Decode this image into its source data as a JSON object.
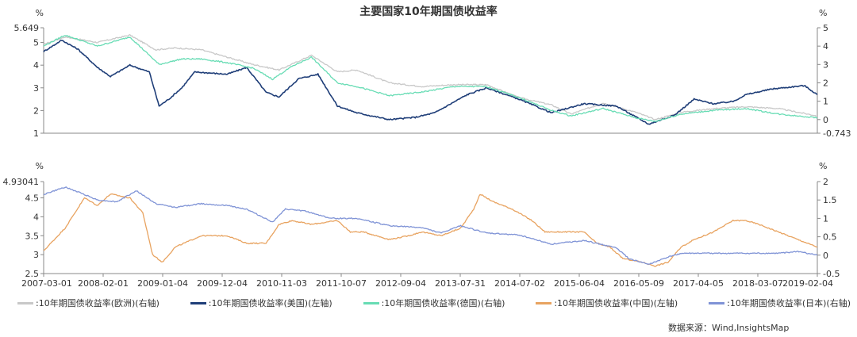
{
  "title": "主要国家10年期国债收益率",
  "source": "数据来源：Wind,InsightsMap",
  "chart_data": [
    {
      "type": "line",
      "id": "top",
      "left_axis": {
        "unit": "%",
        "min": 1,
        "max": 5.649,
        "ticks": [
          1,
          2,
          3,
          4,
          5,
          5.649
        ],
        "tick_labels": [
          "1",
          "2",
          "3",
          "4",
          "5",
          "5.649"
        ]
      },
      "right_axis": {
        "unit": "%",
        "min": -0.743,
        "max": 5,
        "ticks": [
          0,
          1,
          2,
          3,
          4,
          5,
          -0.743
        ],
        "tick_labels": [
          "0",
          "1",
          "2",
          "3",
          "4",
          "5",
          "-0.743"
        ]
      },
      "series": [
        {
          "name": ":10年期国债收益率(欧洲)(右轴)",
          "axis": "right",
          "color": "#c8c8c8",
          "x": [
            2007.17,
            2007.5,
            2008.0,
            2008.5,
            2008.9,
            2009.2,
            2009.6,
            2010.0,
            2010.4,
            2010.8,
            2011.3,
            2011.7,
            2012.0,
            2012.5,
            2013.0,
            2013.5,
            2014.0,
            2014.5,
            2015.0,
            2015.3,
            2015.8,
            2016.3,
            2016.6,
            2017.0,
            2017.5,
            2018.0,
            2018.5,
            2019.1
          ],
          "values": [
            4.1,
            4.5,
            4.2,
            4.6,
            3.8,
            3.9,
            3.8,
            3.4,
            3.0,
            2.7,
            3.5,
            2.6,
            2.7,
            2.0,
            1.8,
            1.9,
            1.9,
            1.2,
            0.8,
            0.3,
            0.9,
            0.4,
            0.0,
            0.4,
            0.6,
            0.7,
            0.6,
            0.2
          ]
        },
        {
          "name": ":10年期国债收益率(美国)(左轴)",
          "axis": "left",
          "color": "#1f3e78",
          "x": [
            2007.17,
            2007.45,
            2007.7,
            2008.0,
            2008.2,
            2008.5,
            2008.8,
            2008.95,
            2009.1,
            2009.3,
            2009.5,
            2010.0,
            2010.3,
            2010.6,
            2010.8,
            2011.1,
            2011.4,
            2011.7,
            2012.0,
            2012.5,
            2012.9,
            2013.2,
            2013.7,
            2014.0,
            2014.5,
            2015.0,
            2015.5,
            2016.0,
            2016.5,
            2016.9,
            2017.2,
            2017.5,
            2017.8,
            2018.0,
            2018.4,
            2018.9,
            2019.1
          ],
          "values": [
            4.6,
            5.1,
            4.7,
            3.9,
            3.5,
            4.0,
            3.7,
            2.2,
            2.5,
            3.0,
            3.7,
            3.6,
            3.9,
            2.8,
            2.6,
            3.4,
            3.6,
            2.2,
            1.9,
            1.6,
            1.7,
            1.9,
            2.7,
            3.0,
            2.5,
            1.9,
            2.3,
            2.2,
            1.4,
            1.8,
            2.5,
            2.3,
            2.4,
            2.7,
            2.95,
            3.1,
            2.7
          ]
        },
        {
          "name": ":10年期国债收益率(德国)(右轴)",
          "axis": "right",
          "color": "#67dcb4",
          "x": [
            2007.17,
            2007.5,
            2008.0,
            2008.5,
            2008.95,
            2009.3,
            2009.6,
            2010.0,
            2010.4,
            2010.7,
            2011.0,
            2011.3,
            2011.7,
            2012.0,
            2012.5,
            2013.0,
            2013.5,
            2014.0,
            2014.5,
            2015.0,
            2015.3,
            2015.8,
            2016.3,
            2016.6,
            2017.0,
            2017.5,
            2018.0,
            2018.5,
            2019.1
          ],
          "values": [
            4.0,
            4.6,
            4.0,
            4.5,
            3.0,
            3.3,
            3.3,
            3.1,
            2.8,
            2.2,
            2.9,
            3.4,
            2.0,
            1.8,
            1.3,
            1.5,
            1.8,
            1.8,
            1.2,
            0.5,
            0.2,
            0.6,
            0.1,
            -0.1,
            0.3,
            0.5,
            0.6,
            0.3,
            0.1
          ]
        }
      ]
    },
    {
      "type": "line",
      "id": "bottom",
      "left_axis": {
        "unit": "%",
        "min": 2.5,
        "max": 4.93041,
        "ticks": [
          2.5,
          3,
          3.5,
          4,
          4.5,
          4.93041
        ],
        "tick_labels": [
          "2.5",
          "3",
          "3.5",
          "4",
          "4.5",
          "4.93041"
        ]
      },
      "right_axis": {
        "unit": "%",
        "min": -0.5,
        "max": 2,
        "ticks": [
          -0.5,
          0,
          0.5,
          1,
          1.5,
          2
        ],
        "tick_labels": [
          "-0.5",
          "0",
          "0.5",
          "1",
          "1.5",
          "2"
        ]
      },
      "x_tick_labels": [
        "2007-03-01",
        "2008-02-01",
        "2009-01-04",
        "2009-12-04",
        "2010-11-03",
        "2011-10-07",
        "2012-09-04",
        "2013-07-31",
        "2014-07-02",
        "2015-06-04",
        "2016-05-09",
        "2017-04-05",
        "2018-03-07",
        "2019-02-04"
      ],
      "series": [
        {
          "name": ":10年期国债收益率(中国)(左轴)",
          "axis": "left",
          "color": "#e8a360",
          "x": [
            2007.17,
            2007.5,
            2007.8,
            2008.0,
            2008.2,
            2008.5,
            2008.7,
            2008.85,
            2009.0,
            2009.2,
            2009.6,
            2010.0,
            2010.3,
            2010.6,
            2010.8,
            2011.0,
            2011.3,
            2011.7,
            2011.9,
            2012.1,
            2012.5,
            2012.8,
            2013.0,
            2013.3,
            2013.6,
            2013.8,
            2013.9,
            2014.1,
            2014.4,
            2014.7,
            2014.9,
            2015.2,
            2015.5,
            2015.7,
            2015.9,
            2016.1,
            2016.4,
            2016.6,
            2016.8,
            2017.0,
            2017.2,
            2017.5,
            2017.8,
            2018.0,
            2018.2,
            2018.5,
            2018.8,
            2019.1
          ],
          "values": [
            3.1,
            3.7,
            4.5,
            4.3,
            4.6,
            4.5,
            4.1,
            3.0,
            2.8,
            3.2,
            3.5,
            3.5,
            3.3,
            3.3,
            3.8,
            3.9,
            3.8,
            3.9,
            3.6,
            3.6,
            3.4,
            3.5,
            3.6,
            3.5,
            3.7,
            4.2,
            4.6,
            4.4,
            4.2,
            3.9,
            3.6,
            3.6,
            3.6,
            3.3,
            3.2,
            2.9,
            2.8,
            2.7,
            2.8,
            3.2,
            3.4,
            3.6,
            3.9,
            3.9,
            3.8,
            3.6,
            3.4,
            3.2
          ]
        },
        {
          "name": ":10年期国债收益率(日本)(右轴)",
          "axis": "right",
          "color": "#7f93d6",
          "x": [
            2007.17,
            2007.5,
            2007.8,
            2008.0,
            2008.3,
            2008.6,
            2008.9,
            2009.2,
            2009.6,
            2010.0,
            2010.3,
            2010.7,
            2010.9,
            2011.2,
            2011.6,
            2012.0,
            2012.5,
            2013.0,
            2013.3,
            2013.6,
            2014.0,
            2014.5,
            2015.0,
            2015.5,
            2016.0,
            2016.2,
            2016.5,
            2016.8,
            2017.0,
            2017.5,
            2018.0,
            2018.5,
            2018.8,
            2019.1
          ],
          "values": [
            1.65,
            1.85,
            1.65,
            1.5,
            1.45,
            1.75,
            1.4,
            1.3,
            1.4,
            1.35,
            1.25,
            0.9,
            1.25,
            1.2,
            1.0,
            1.0,
            0.8,
            0.75,
            0.6,
            0.8,
            0.6,
            0.55,
            0.3,
            0.4,
            0.2,
            -0.1,
            -0.25,
            -0.05,
            0.05,
            0.05,
            0.05,
            0.05,
            0.1,
            0.0
          ]
        }
      ]
    }
  ],
  "legend": [
    {
      "label": ":10年期国债收益率(欧洲)(右轴)",
      "color": "#c8c8c8"
    },
    {
      "label": ":10年期国债收益率(美国)(左轴)",
      "color": "#1f3e78"
    },
    {
      "label": ":10年期国债收益率(德国)(右轴)",
      "color": "#67dcb4"
    },
    {
      "label": ":10年期国债收益率(中国)(左轴)",
      "color": "#e8a360"
    },
    {
      "label": ":10年期国债收益率(日本)(右轴)",
      "color": "#7f93d6"
    }
  ]
}
